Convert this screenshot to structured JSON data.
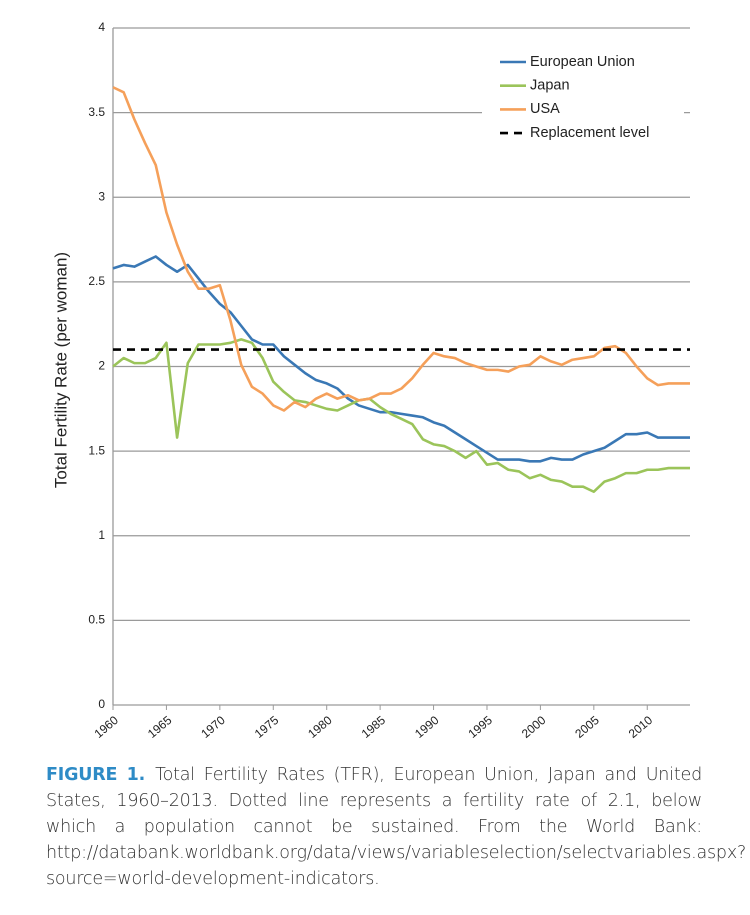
{
  "chart_data": {
    "type": "line",
    "ylabel": "Total Fertility Rate (per woman)",
    "x": [
      1960,
      1961,
      1962,
      1963,
      1964,
      1965,
      1966,
      1967,
      1968,
      1969,
      1970,
      1971,
      1972,
      1973,
      1974,
      1975,
      1976,
      1977,
      1978,
      1979,
      1980,
      1981,
      1982,
      1983,
      1984,
      1985,
      1986,
      1987,
      1988,
      1989,
      1990,
      1991,
      1992,
      1993,
      1994,
      1995,
      1996,
      1997,
      1998,
      1999,
      2000,
      2001,
      2002,
      2003,
      2004,
      2005,
      2006,
      2007,
      2008,
      2009,
      2010,
      2011,
      2012,
      2013,
      2014
    ],
    "series": [
      {
        "name": "European Union",
        "color": "#3a78b5",
        "values": [
          2.58,
          2.6,
          2.59,
          2.62,
          2.65,
          2.6,
          2.56,
          2.6,
          2.52,
          2.44,
          2.37,
          2.32,
          2.24,
          2.16,
          2.13,
          2.13,
          2.06,
          2.01,
          1.96,
          1.92,
          1.9,
          1.87,
          1.81,
          1.77,
          1.75,
          1.73,
          1.73,
          1.72,
          1.71,
          1.7,
          1.67,
          1.65,
          1.61,
          1.57,
          1.53,
          1.49,
          1.45,
          1.45,
          1.45,
          1.44,
          1.44,
          1.46,
          1.45,
          1.45,
          1.48,
          1.5,
          1.52,
          1.56,
          1.6,
          1.6,
          1.61,
          1.58,
          1.58,
          1.58,
          1.58
        ]
      },
      {
        "name": "Japan",
        "color": "#9bc45a",
        "values": [
          2.0,
          2.05,
          2.02,
          2.02,
          2.05,
          2.14,
          1.58,
          2.02,
          2.13,
          2.13,
          2.13,
          2.14,
          2.16,
          2.14,
          2.05,
          1.91,
          1.85,
          1.8,
          1.79,
          1.77,
          1.75,
          1.74,
          1.77,
          1.8,
          1.81,
          1.76,
          1.72,
          1.69,
          1.66,
          1.57,
          1.54,
          1.53,
          1.5,
          1.46,
          1.5,
          1.42,
          1.43,
          1.39,
          1.38,
          1.34,
          1.36,
          1.33,
          1.32,
          1.29,
          1.29,
          1.26,
          1.32,
          1.34,
          1.37,
          1.37,
          1.39,
          1.39,
          1.4,
          1.4,
          1.4
        ]
      },
      {
        "name": "USA",
        "color": "#f5a05a",
        "values": [
          3.65,
          3.62,
          3.46,
          3.32,
          3.19,
          2.91,
          2.72,
          2.56,
          2.46,
          2.46,
          2.48,
          2.27,
          2.01,
          1.88,
          1.84,
          1.77,
          1.74,
          1.79,
          1.76,
          1.81,
          1.84,
          1.81,
          1.83,
          1.8,
          1.81,
          1.84,
          1.84,
          1.87,
          1.93,
          2.01,
          2.08,
          2.06,
          2.05,
          2.02,
          2.0,
          1.98,
          1.98,
          1.97,
          2.0,
          2.01,
          2.06,
          2.03,
          2.01,
          2.04,
          2.05,
          2.06,
          2.11,
          2.12,
          2.08,
          2.0,
          1.93,
          1.89,
          1.9,
          1.9,
          1.9
        ]
      }
    ],
    "reference_line": {
      "name": "Replacement level",
      "value": 2.1,
      "color": "#000000"
    },
    "xlim": [
      1960,
      2014
    ],
    "xticks": [
      1960,
      1965,
      1970,
      1975,
      1980,
      1985,
      1990,
      1995,
      2000,
      2005,
      2010
    ],
    "ylim": [
      0,
      4
    ],
    "yticks": [
      0,
      0.5,
      1,
      1.5,
      2,
      2.5,
      3,
      3.5,
      4
    ],
    "grid": true,
    "legend": "upper right"
  },
  "caption": {
    "label": "FIGURE 1.",
    "text": "Total Fertility Rates (TFR), European Union, Japan and United States, 1960–2013. Dotted line represents a fertility rate of 2.1, below which a population cannot be sustained. From the World Bank: http://databank.worldbank.org/data/views/variableselection/selectvariables.aspx?source=world-development-indicators."
  }
}
